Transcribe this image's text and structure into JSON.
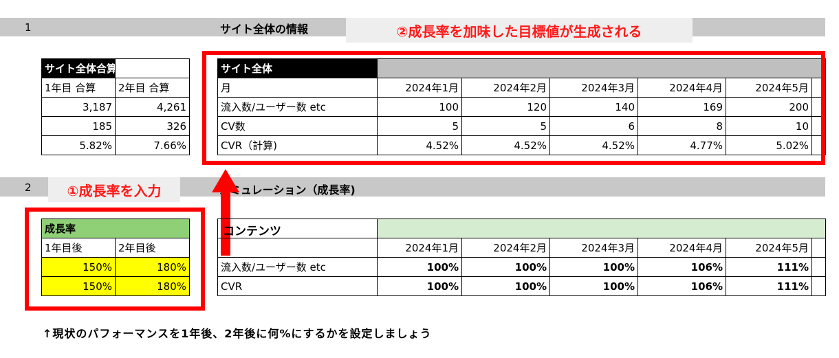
{
  "section1": {
    "row_number": "1",
    "title": "サイト全体の情報"
  },
  "section2": {
    "row_number": "2",
    "title": "シミュレーション（成長率)"
  },
  "callout_target": "②成長率を加味した目標値が生成される",
  "callout_input": "①成長率を入力",
  "summary": {
    "title": "サイト全体合算",
    "headers": [
      "1年目 合算",
      "2年目 合算"
    ],
    "rows": [
      [
        "3,187",
        "4,261"
      ],
      [
        "185",
        "326"
      ],
      [
        "5.82%",
        "7.66%"
      ]
    ]
  },
  "site_table": {
    "title": "サイト全体",
    "month_label": "月",
    "months": [
      "2024年1月",
      "2024年2月",
      "2024年3月",
      "2024年4月",
      "2024年5月"
    ],
    "rows": [
      {
        "label": "流入数/ユーザー数 etc",
        "values": [
          "100",
          "120",
          "140",
          "169",
          "200"
        ]
      },
      {
        "label": "CV数",
        "values": [
          "5",
          "5",
          "6",
          "8",
          "10"
        ]
      },
      {
        "label": "CVR（計算)",
        "values": [
          "4.52%",
          "4.52%",
          "4.52%",
          "4.77%",
          "5.02%"
        ]
      }
    ]
  },
  "growth": {
    "title": "成長率",
    "headers": [
      "1年目後",
      "2年目後"
    ],
    "rows": [
      [
        "150%",
        "180%"
      ],
      [
        "150%",
        "180%"
      ]
    ]
  },
  "content_table": {
    "title": "コンテンツ",
    "months": [
      "2024年1月",
      "2024年2月",
      "2024年3月",
      "2024年4月",
      "2024年5月"
    ],
    "rows": [
      {
        "label": "流入数/ユーザー数 etc",
        "values": [
          "100%",
          "100%",
          "100%",
          "106%",
          "111%"
        ]
      },
      {
        "label": "CVR",
        "values": [
          "100%",
          "100%",
          "100%",
          "106%",
          "111%"
        ]
      }
    ]
  },
  "footer_note": "↑現状のパフォーマンスを1年後、2年後に何%にするかを設定しましょう",
  "colors": {
    "callout_text": "#ff1a1a",
    "red_frame": "#ff0000",
    "yellow": "#ffff00",
    "green": "#8fcf76"
  }
}
